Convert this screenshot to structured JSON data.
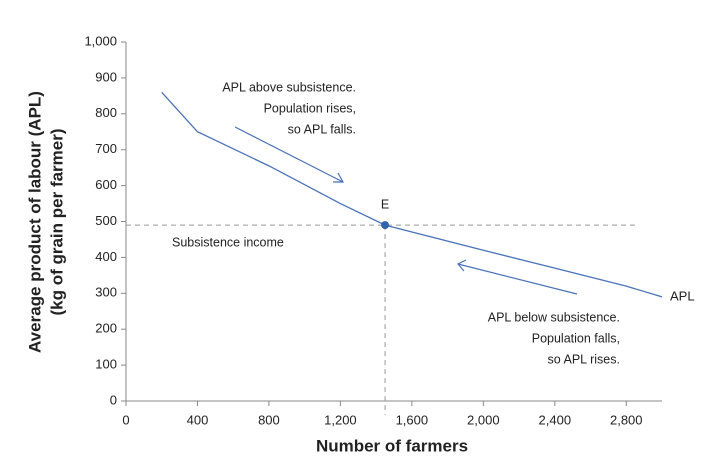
{
  "chart_data": {
    "type": "line",
    "xlabel": "Number of farmers",
    "ylabel": [
      "Average product of labour (APL)",
      "(kg of grain per farmer)"
    ],
    "x": [
      200,
      400,
      800,
      1200,
      1450,
      2000,
      2400,
      2800,
      3000
    ],
    "series": [
      {
        "name": "APL",
        "color": "#4a72b8",
        "values": [
          860,
          750,
          655,
          550,
          490,
          420,
          370,
          320,
          290
        ]
      }
    ],
    "point": {
      "label": "E",
      "x": 1450,
      "y": 490,
      "color": "#2e64ac"
    },
    "annotations": {
      "subsistence": "Subsistence income",
      "above": [
        "APL above subsistence.",
        "Population rises,",
        "so APL falls."
      ],
      "below": [
        "APL below subsistence.",
        "Population falls,",
        "so APL rises."
      ]
    },
    "xlim": [
      0,
      3000
    ],
    "ylim": [
      0,
      1000
    ],
    "xticks": [
      0,
      400,
      800,
      {
        "value": 1200,
        "label": "1,200"
      },
      {
        "value": 1600,
        "label": "1,600"
      },
      {
        "value": 2000,
        "label": "2,000"
      },
      {
        "value": 2400,
        "label": "2,400"
      },
      {
        "value": 2800,
        "label": "2,800"
      }
    ],
    "yticks": [
      0,
      100,
      200,
      300,
      400,
      500,
      600,
      700,
      800,
      900,
      {
        "value": 1000,
        "label": "1,000"
      }
    ],
    "grid": false
  }
}
